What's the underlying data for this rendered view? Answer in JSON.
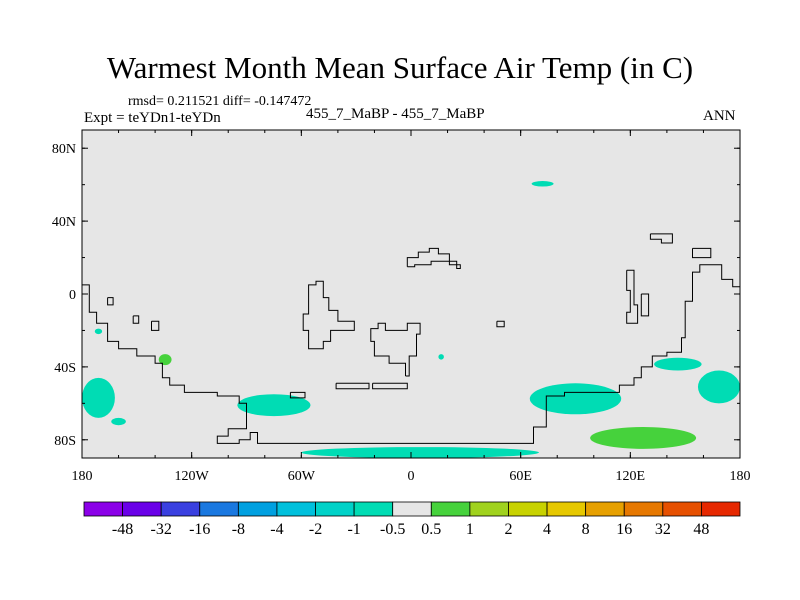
{
  "title": "Warmest Month Mean Surface Air Temp (in C)",
  "stats_line": "rmsd= 0.211521 diff= -0.147472",
  "expt_line": "Expt = teYDn1-teYDn",
  "cases_line": "455_7_MaBP - 455_7_MaBP",
  "period": "ANN",
  "map": {
    "background_color": "#e6e6e6",
    "lon_range": [
      -180,
      180
    ],
    "lat_range": [
      -90,
      90
    ],
    "lon_ticks": [
      {
        "value": -180,
        "label": "180"
      },
      {
        "value": -120,
        "label": "120W"
      },
      {
        "value": -60,
        "label": "60W"
      },
      {
        "value": 0,
        "label": "0"
      },
      {
        "value": 60,
        "label": "60E"
      },
      {
        "value": 120,
        "label": "120E"
      },
      {
        "value": 180,
        "label": "180"
      }
    ],
    "lat_ticks": [
      {
        "value": 80,
        "label": "80N"
      },
      {
        "value": 40,
        "label": "40N"
      },
      {
        "value": 0,
        "label": "0"
      },
      {
        "value": -40,
        "label": "40S"
      },
      {
        "value": -80,
        "label": "80S"
      }
    ],
    "anomaly_patches": [
      {
        "color": "#00dcb4",
        "lon": -180,
        "lat": -46,
        "w": 18,
        "h": 22
      },
      {
        "color": "#00dcb4",
        "lon": -164,
        "lat": -68,
        "w": 8,
        "h": 4
      },
      {
        "color": "#00dcb4",
        "lon": -95,
        "lat": -55,
        "w": 40,
        "h": 12
      },
      {
        "color": "#00dcb4",
        "lon": -60,
        "lat": -84,
        "w": 130,
        "h": 6
      },
      {
        "color": "#00dcb4",
        "lon": 65,
        "lat": -49,
        "w": 50,
        "h": 17
      },
      {
        "color": "#00dcb4",
        "lon": 133,
        "lat": -35,
        "w": 26,
        "h": 7
      },
      {
        "color": "#00dcb4",
        "lon": 157,
        "lat": -42,
        "w": 23,
        "h": 18
      },
      {
        "color": "#00dcb4",
        "lon": 66,
        "lat": 62,
        "w": 12,
        "h": 3
      },
      {
        "color": "#00dcb4",
        "lon": -173,
        "lat": -19,
        "w": 4,
        "h": 3
      },
      {
        "color": "#00dcb4",
        "lon": 15,
        "lat": -33,
        "w": 3,
        "h": 3
      },
      {
        "color": "#46d23c",
        "lon": 98,
        "lat": -73,
        "w": 58,
        "h": 12
      },
      {
        "color": "#46d23c",
        "lon": -138,
        "lat": -33,
        "w": 7,
        "h": 6
      }
    ],
    "coastlines": [
      [
        [
          -180,
          5
        ],
        [
          -176,
          5
        ],
        [
          -176,
          -10
        ],
        [
          -172,
          -10
        ],
        [
          -172,
          -16
        ],
        [
          -166,
          -16
        ],
        [
          -166,
          -26
        ],
        [
          -160,
          -26
        ],
        [
          -160,
          -30
        ],
        [
          -150,
          -30
        ],
        [
          -150,
          -34
        ],
        [
          -140,
          -34
        ],
        [
          -140,
          -38
        ],
        [
          -136,
          -38
        ],
        [
          -136,
          -46
        ],
        [
          -132,
          -46
        ],
        [
          -132,
          -50
        ],
        [
          -124,
          -50
        ],
        [
          -124,
          -54
        ],
        [
          -106,
          -54
        ],
        [
          -106,
          -56
        ],
        [
          -94,
          -56
        ],
        [
          -94,
          -60
        ],
        [
          -90,
          -60
        ],
        [
          -90,
          -74
        ],
        [
          -100,
          -74
        ],
        [
          -100,
          -78
        ],
        [
          -106,
          -78
        ],
        [
          -106,
          -82
        ],
        [
          -94,
          -82
        ],
        [
          -94,
          -80
        ],
        [
          -88,
          -80
        ],
        [
          -88,
          -76
        ],
        [
          -84,
          -76
        ],
        [
          -84,
          -82
        ],
        [
          67,
          -82
        ],
        [
          67,
          -73
        ],
        [
          74,
          -73
        ],
        [
          74,
          -56
        ],
        [
          84,
          -56
        ],
        [
          84,
          -54
        ],
        [
          114,
          -54
        ],
        [
          114,
          -50
        ],
        [
          122,
          -50
        ],
        [
          122,
          -46
        ],
        [
          126,
          -46
        ],
        [
          126,
          -40
        ],
        [
          132,
          -40
        ],
        [
          132,
          -34
        ],
        [
          140,
          -34
        ],
        [
          140,
          -32
        ],
        [
          148,
          -32
        ],
        [
          148,
          -24
        ],
        [
          150,
          -24
        ],
        [
          150,
          -4
        ],
        [
          154,
          -4
        ],
        [
          154,
          12
        ],
        [
          158,
          12
        ],
        [
          158,
          16
        ],
        [
          170,
          16
        ],
        [
          170,
          8
        ],
        [
          176,
          8
        ],
        [
          176,
          4
        ],
        [
          180,
          4
        ]
      ],
      [
        [
          -166,
          -2
        ],
        [
          -163,
          -2
        ],
        [
          -163,
          -6
        ],
        [
          -166,
          -6
        ],
        [
          -166,
          -2
        ]
      ],
      [
        [
          -152,
          -12
        ],
        [
          -149,
          -12
        ],
        [
          -149,
          -16
        ],
        [
          -152,
          -16
        ],
        [
          -152,
          -12
        ]
      ],
      [
        [
          -142,
          -15
        ],
        [
          -138,
          -15
        ],
        [
          -138,
          -20
        ],
        [
          -142,
          -20
        ],
        [
          -142,
          -15
        ]
      ],
      [
        [
          -59,
          -16
        ],
        [
          -59,
          -11
        ],
        [
          -56,
          -11
        ],
        [
          -56,
          5
        ],
        [
          -52,
          5
        ],
        [
          -52,
          7
        ],
        [
          -48,
          7
        ],
        [
          -48,
          -2
        ],
        [
          -45,
          -2
        ],
        [
          -45,
          -9
        ],
        [
          -40,
          -9
        ],
        [
          -40,
          -15
        ],
        [
          -31,
          -15
        ],
        [
          -31,
          -20
        ],
        [
          -44,
          -20
        ],
        [
          -44,
          -26
        ],
        [
          -48,
          -26
        ],
        [
          -48,
          -30
        ],
        [
          -56,
          -30
        ],
        [
          -56,
          -20
        ],
        [
          -59,
          -20
        ],
        [
          -59,
          -16
        ]
      ],
      [
        [
          -3,
          -45
        ],
        [
          -3,
          -38
        ],
        [
          -12,
          -38
        ],
        [
          -12,
          -34
        ],
        [
          -20,
          -34
        ],
        [
          -20,
          -26
        ],
        [
          -22,
          -26
        ],
        [
          -22,
          -19
        ],
        [
          -18,
          -19
        ],
        [
          -18,
          -16
        ],
        [
          -14,
          -16
        ],
        [
          -14,
          -20
        ],
        [
          -2,
          -20
        ],
        [
          -2,
          -16
        ],
        [
          5,
          -16
        ],
        [
          5,
          -22
        ],
        [
          3,
          -22
        ],
        [
          3,
          -34
        ],
        [
          -1,
          -34
        ],
        [
          -1,
          -45
        ],
        [
          -3,
          -45
        ]
      ],
      [
        [
          -2,
          15
        ],
        [
          -2,
          20
        ],
        [
          4,
          20
        ],
        [
          4,
          23
        ],
        [
          10,
          23
        ],
        [
          10,
          25
        ],
        [
          15,
          25
        ],
        [
          15,
          22
        ],
        [
          21,
          22
        ],
        [
          21,
          16
        ],
        [
          27,
          16
        ],
        [
          27,
          14
        ],
        [
          25,
          14
        ],
        [
          25,
          18
        ],
        [
          11,
          18
        ],
        [
          11,
          16
        ],
        [
          2,
          16
        ],
        [
          2,
          15
        ],
        [
          -2,
          15
        ]
      ],
      [
        [
          -41,
          -49
        ],
        [
          -23,
          -49
        ],
        [
          -23,
          -52
        ],
        [
          -41,
          -52
        ],
        [
          -41,
          -49
        ]
      ],
      [
        [
          -21,
          -49
        ],
        [
          -2,
          -49
        ],
        [
          -2,
          -52
        ],
        [
          -21,
          -52
        ],
        [
          -21,
          -49
        ]
      ],
      [
        [
          -66,
          -54
        ],
        [
          -58,
          -54
        ],
        [
          -58,
          -57
        ],
        [
          -66,
          -57
        ],
        [
          -66,
          -54
        ]
      ],
      [
        [
          47,
          -15
        ],
        [
          51,
          -15
        ],
        [
          51,
          -18
        ],
        [
          47,
          -18
        ],
        [
          47,
          -15
        ]
      ],
      [
        [
          131,
          33
        ],
        [
          131,
          30
        ],
        [
          137,
          30
        ],
        [
          137,
          28
        ],
        [
          143,
          28
        ],
        [
          143,
          33
        ],
        [
          131,
          33
        ]
      ],
      [
        [
          154,
          25
        ],
        [
          164,
          25
        ],
        [
          164,
          20
        ],
        [
          154,
          20
        ],
        [
          154,
          25
        ]
      ],
      [
        [
          118,
          13
        ],
        [
          118,
          2
        ],
        [
          120,
          2
        ],
        [
          120,
          -10
        ],
        [
          118,
          -10
        ],
        [
          118,
          -16
        ],
        [
          124,
          -16
        ],
        [
          124,
          -6
        ],
        [
          122,
          -6
        ],
        [
          122,
          13
        ],
        [
          118,
          13
        ]
      ],
      [
        [
          126,
          0
        ],
        [
          130,
          0
        ],
        [
          130,
          -12
        ],
        [
          126,
          -12
        ],
        [
          126,
          0
        ]
      ]
    ]
  },
  "colorbar": {
    "colors": [
      "#8b00e8",
      "#6a00e8",
      "#3a40e0",
      "#1a78e0",
      "#00a0e0",
      "#00c0dc",
      "#00d2c8",
      "#00dcb4",
      "#e6e6e6",
      "#46d23c",
      "#a0d21e",
      "#c8d200",
      "#e6c800",
      "#e6a000",
      "#e67800",
      "#e65000",
      "#e62800"
    ],
    "labels": [
      "-48",
      "-32",
      "-16",
      "-8",
      "-4",
      "-2",
      "-1",
      "-0.5",
      "0.5",
      "1",
      "2",
      "4",
      "8",
      "16",
      "32",
      "48"
    ]
  }
}
